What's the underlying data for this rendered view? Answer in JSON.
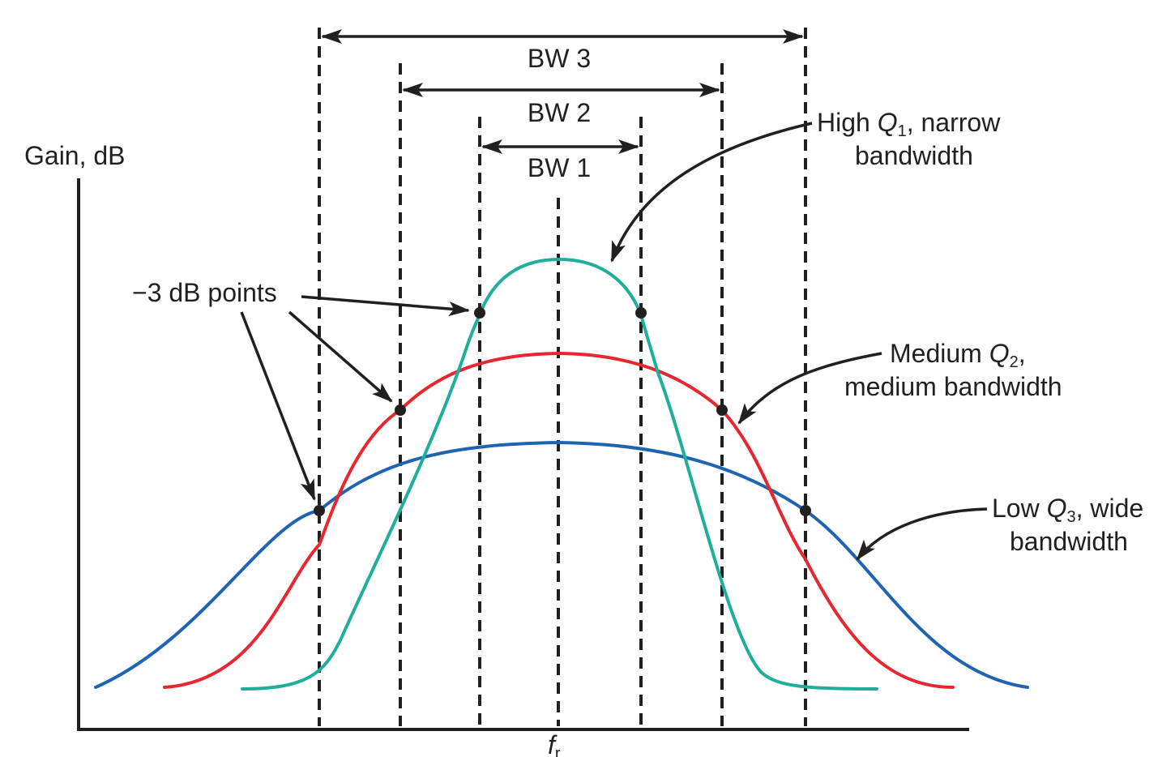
{
  "labels": {
    "y_axis": "Gain, dB",
    "x_axis": "f",
    "x_axis_sub": "r",
    "bw3": "BW 3",
    "bw2": "BW 2",
    "bw1": "BW 1",
    "minus3db": "−3 dB points",
    "high_q_prefix": "High ",
    "high_q_sym": "Q",
    "high_q_sub": "1",
    "high_q_suffix": ", narrow",
    "high_q_line2": "bandwidth",
    "med_q_prefix": "Medium ",
    "med_q_sym": "Q",
    "med_q_sub": "2",
    "med_q_suffix": ",",
    "med_q_line2": "medium bandwidth",
    "low_q_prefix": "Low ",
    "low_q_sym": "Q",
    "low_q_sub": "3",
    "low_q_suffix": ", wide",
    "low_q_line2": "bandwidth"
  },
  "colors": {
    "high_q_curve": "#1fae9a",
    "medium_q_curve": "#e8262f",
    "low_q_curve": "#1f63b3",
    "ink": "#231f20"
  }
}
